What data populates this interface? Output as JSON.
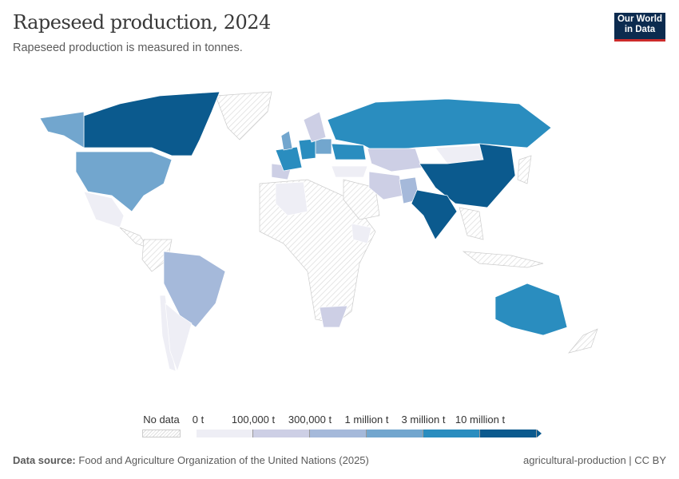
{
  "header": {
    "title": "Rapeseed production, 2024",
    "subtitle": "Rapeseed production is measured in tonnes.",
    "logo_text": "Our World in Data"
  },
  "legend": {
    "no_data_label": "No data",
    "bins": [
      {
        "label": "0 t",
        "color": "#eeeef5"
      },
      {
        "label": "100,000 t",
        "color": "#cdcfe5"
      },
      {
        "label": "300,000 t",
        "color": "#a5b9da"
      },
      {
        "label": "1 million t",
        "color": "#72a6ce"
      },
      {
        "label": "3 million t",
        "color": "#2a8dbf"
      },
      {
        "label": "10 million t",
        "color": "#0b5a8e"
      }
    ]
  },
  "chart_data": {
    "type": "choropleth",
    "title": "Rapeseed production, 2024",
    "unit": "tonnes",
    "country_bins": {
      "Canada": "10 million t+",
      "China": "10 million t+",
      "India": "10 million t+",
      "Russia": "3–10 million t",
      "Australia": "3–10 million t",
      "France": "3–10 million t",
      "Germany": "3–10 million t",
      "Ukraine": "3–10 million t",
      "United States": "1–3 million t",
      "United Kingdom": "1–3 million t",
      "Poland": "1–3 million t",
      "Brazil": "300,000–1 million t",
      "Pakistan": "300,000–1 million t",
      "Kazakhstan": "100,000–300,000 t",
      "South Africa": "100,000–300,000 t",
      "Iran": "100,000–300,000 t",
      "Spain": "100,000–300,000 t",
      "Sweden": "100,000–300,000 t",
      "Mexico": "0–100,000 t",
      "Argentina": "0–100,000 t",
      "Turkey": "0–100,000 t",
      "Mongolia": "0–100,000 t",
      "Chile": "0–100,000 t",
      "Ethiopia": "0–100,000 t",
      "Algeria": "0–100,000 t"
    }
  },
  "footer": {
    "source_label": "Data source:",
    "source_text": "Food and Agriculture Organization of the United Nations (2025)",
    "right": "agricultural-production | CC BY"
  }
}
